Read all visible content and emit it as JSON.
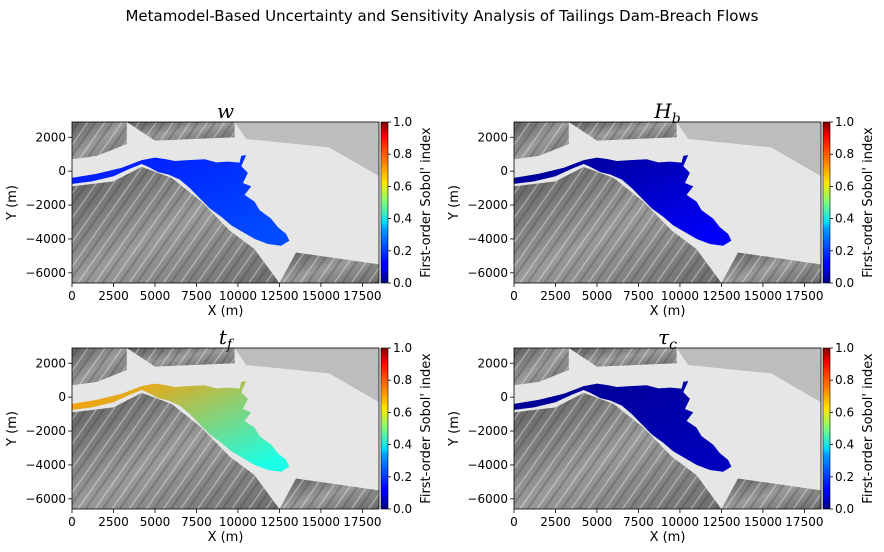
{
  "suptitle": "Metamodel-Based Uncertainty and Sensitivity Analysis of Tailings Dam-Breach Flows",
  "colorbar_label": "First-order Sobol' index",
  "colors": {
    "hill": "#8a8a8a",
    "plain": "#e6e6e6",
    "colormap": "jet"
  },
  "chart_data": [
    {
      "type": "heatmap",
      "title": "w",
      "xlabel": "X (m)",
      "ylabel": "Y (m)",
      "xlim": [
        0,
        18500
      ],
      "ylim": [
        -6600,
        2900
      ],
      "xticks": [
        "0",
        "2500",
        "5000",
        "7500",
        "10000",
        "12500",
        "15000",
        "17500"
      ],
      "yticks": [
        "2000",
        "0",
        "−2000",
        "−4000",
        "−6000"
      ],
      "colorbar": {
        "min": 0.0,
        "max": 1.0,
        "ticks": [
          "0.0",
          "0.2",
          "0.4",
          "0.6",
          "0.8",
          "1.0"
        ]
      },
      "sobol_index_upstream": 0.15,
      "sobol_index_downstream": 0.2
    },
    {
      "type": "heatmap",
      "title": "H_b",
      "xlabel": "X (m)",
      "ylabel": "Y (m)",
      "xlim": [
        0,
        18500
      ],
      "ylim": [
        -6600,
        2900
      ],
      "xticks": [
        "0",
        "2500",
        "5000",
        "7500",
        "10000",
        "12500",
        "15000",
        "17500"
      ],
      "yticks": [
        "2000",
        "0",
        "−2000",
        "−4000",
        "−6000"
      ],
      "colorbar": {
        "min": 0.0,
        "max": 1.0,
        "ticks": [
          "0.0",
          "0.2",
          "0.4",
          "0.6",
          "0.8",
          "1.0"
        ]
      },
      "sobol_index_upstream": 0.02,
      "sobol_index_downstream": 0.12
    },
    {
      "type": "heatmap",
      "title": "t_f",
      "xlabel": "X (m)",
      "ylabel": "Y (m)",
      "xlim": [
        0,
        18500
      ],
      "ylim": [
        -6600,
        2900
      ],
      "xticks": [
        "0",
        "2500",
        "5000",
        "7500",
        "10000",
        "12500",
        "15000",
        "17500"
      ],
      "yticks": [
        "2000",
        "0",
        "−2000",
        "−4000",
        "−6000"
      ],
      "colorbar": {
        "min": 0.0,
        "max": 1.0,
        "ticks": [
          "0.0",
          "0.2",
          "0.4",
          "0.6",
          "0.8",
          "1.0"
        ]
      },
      "sobol_index_upstream": 0.72,
      "sobol_index_downstream": 0.4
    },
    {
      "type": "heatmap",
      "title": "τ_c",
      "xlabel": "X (m)",
      "ylabel": "Y (m)",
      "xlim": [
        0,
        18500
      ],
      "ylim": [
        -6600,
        2900
      ],
      "xticks": [
        "0",
        "2500",
        "5000",
        "7500",
        "10000",
        "12500",
        "15000",
        "17500"
      ],
      "yticks": [
        "2000",
        "0",
        "−2000",
        "−4000",
        "−6000"
      ],
      "colorbar": {
        "min": 0.0,
        "max": 1.0,
        "ticks": [
          "0.0",
          "0.2",
          "0.4",
          "0.6",
          "0.8",
          "1.0"
        ]
      },
      "sobol_index_upstream": 0.02,
      "sobol_index_downstream": 0.06
    }
  ]
}
